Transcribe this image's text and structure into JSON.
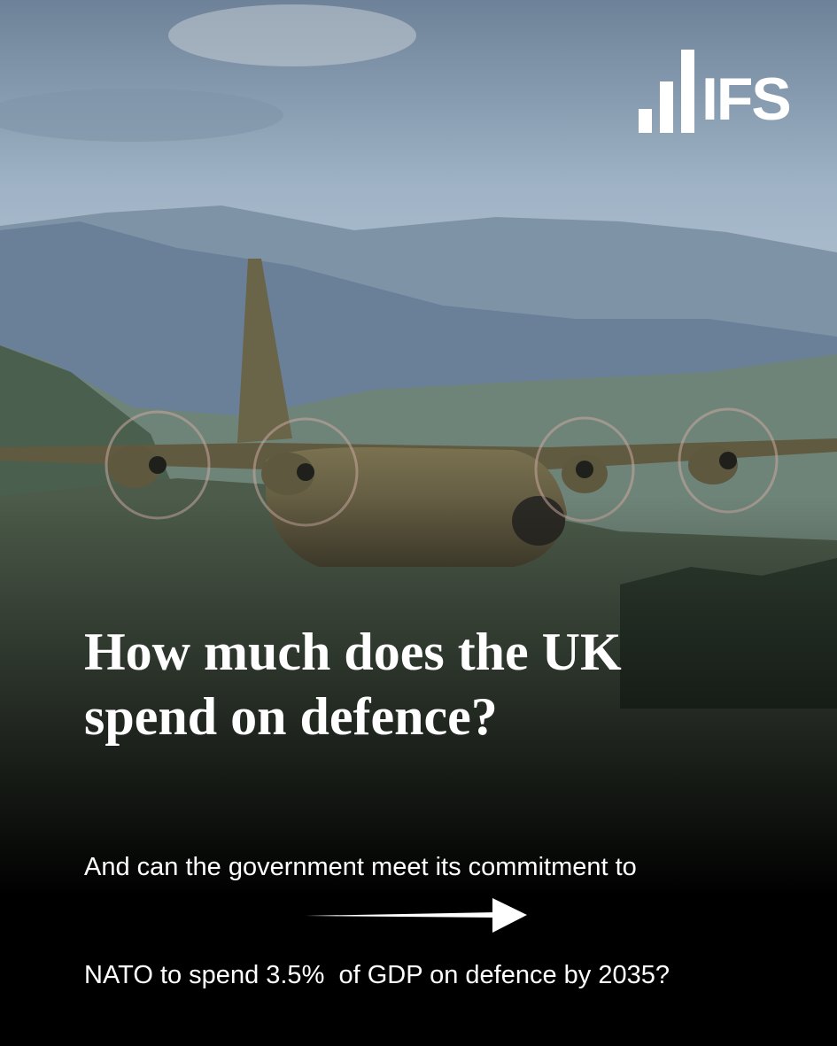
{
  "logo": {
    "text": "IFS"
  },
  "headline": {
    "lines": [
      "How much does the UK",
      "spend on defence?"
    ]
  },
  "subheading": {
    "lines": [
      "And can the government meet its commitment to",
      "NATO to spend 3.5%  of GDP on defence by 2035?"
    ]
  }
}
